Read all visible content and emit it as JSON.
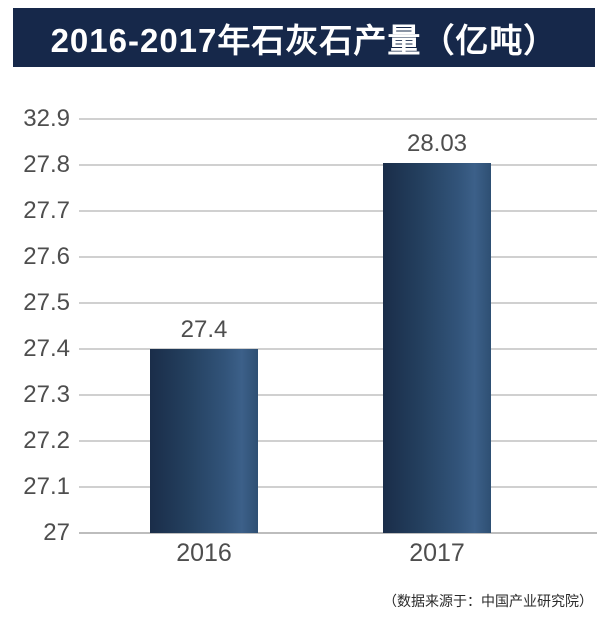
{
  "title": {
    "text": "2016-2017年石灰石产量（亿吨）"
  },
  "source_note": "（数据来源于：中国产业研究院）",
  "colors": {
    "banner_bg": "#16284a",
    "banner_text": "#ffffff",
    "bar_gradient": [
      "#1a2d49",
      "#24405f",
      "#32547a",
      "#3c6089",
      "#2e4f73"
    ],
    "gridline": "#d0d0d0",
    "axis_line": "#bdbdbd",
    "label_text": "#4e4e4e",
    "source_text": "#2a2a2a",
    "background": "#ffffff"
  },
  "chart_data": {
    "type": "bar",
    "title": "2016-2017年石灰石产量（亿吨）",
    "categories": [
      "2016",
      "2017"
    ],
    "values": [
      27.4,
      28.03
    ],
    "data_labels": [
      "27.4",
      "28.03"
    ],
    "y_ticks_top_to_bottom": [
      "32.9",
      "27.8",
      "27.7",
      "27.6",
      "27.5",
      "27.4",
      "27.3",
      "27.2",
      "27.1",
      "27"
    ],
    "xlabel": "",
    "ylabel": "",
    "ylim_bottom": 27,
    "grid": "horizontal",
    "legend": "none",
    "source": "（数据来源于：中国产业研究院）"
  }
}
